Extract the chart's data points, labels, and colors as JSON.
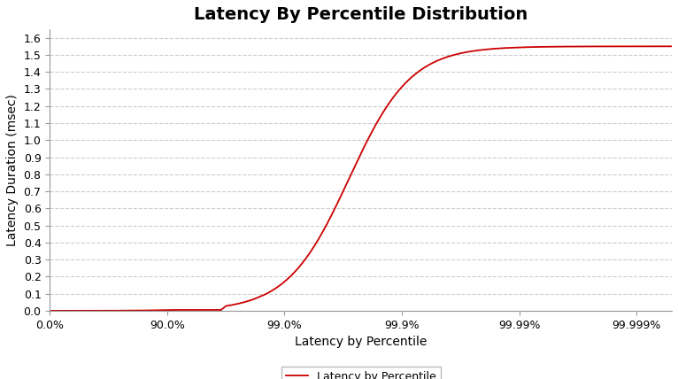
{
  "title": "Latency By Percentile Distribution",
  "xlabel": "Latency by Percentile",
  "ylabel": "Latency Duration (msec)",
  "line_color": "#cc0000",
  "line_label": "Latency by Percentile",
  "background_color": "#ffffff",
  "plot_bg_color": "#ffffff",
  "ylim": [
    0.0,
    1.65
  ],
  "ytick_values": [
    0.0,
    0.1,
    0.2,
    0.3,
    0.4,
    0.5,
    0.6,
    0.7,
    0.8,
    0.9,
    1.0,
    1.1,
    1.2,
    1.3,
    1.4,
    1.5,
    1.6
  ],
  "ytick_labels": [
    "0.0",
    "0.1",
    "0.2",
    "0.3",
    "0.4",
    "0.5",
    "0.6",
    "0.7",
    "0.8",
    "0.9",
    "1.0",
    "1.1",
    "1.2",
    "1.3",
    "1.4",
    "1.5",
    "1.6"
  ],
  "xtick_pcts": [
    0.0,
    0.9,
    0.99,
    0.999,
    0.9999,
    0.99999
  ],
  "xtick_labels": [
    "0.0%",
    "90.0%",
    "99.0%",
    "99.9%",
    "99.99%",
    "99.999%"
  ],
  "grid_color": "#cccccc",
  "title_fontsize": 14,
  "title_fontweight": "bold",
  "axis_label_fontsize": 10,
  "tick_label_fontsize": 9,
  "legend_fontsize": 9
}
